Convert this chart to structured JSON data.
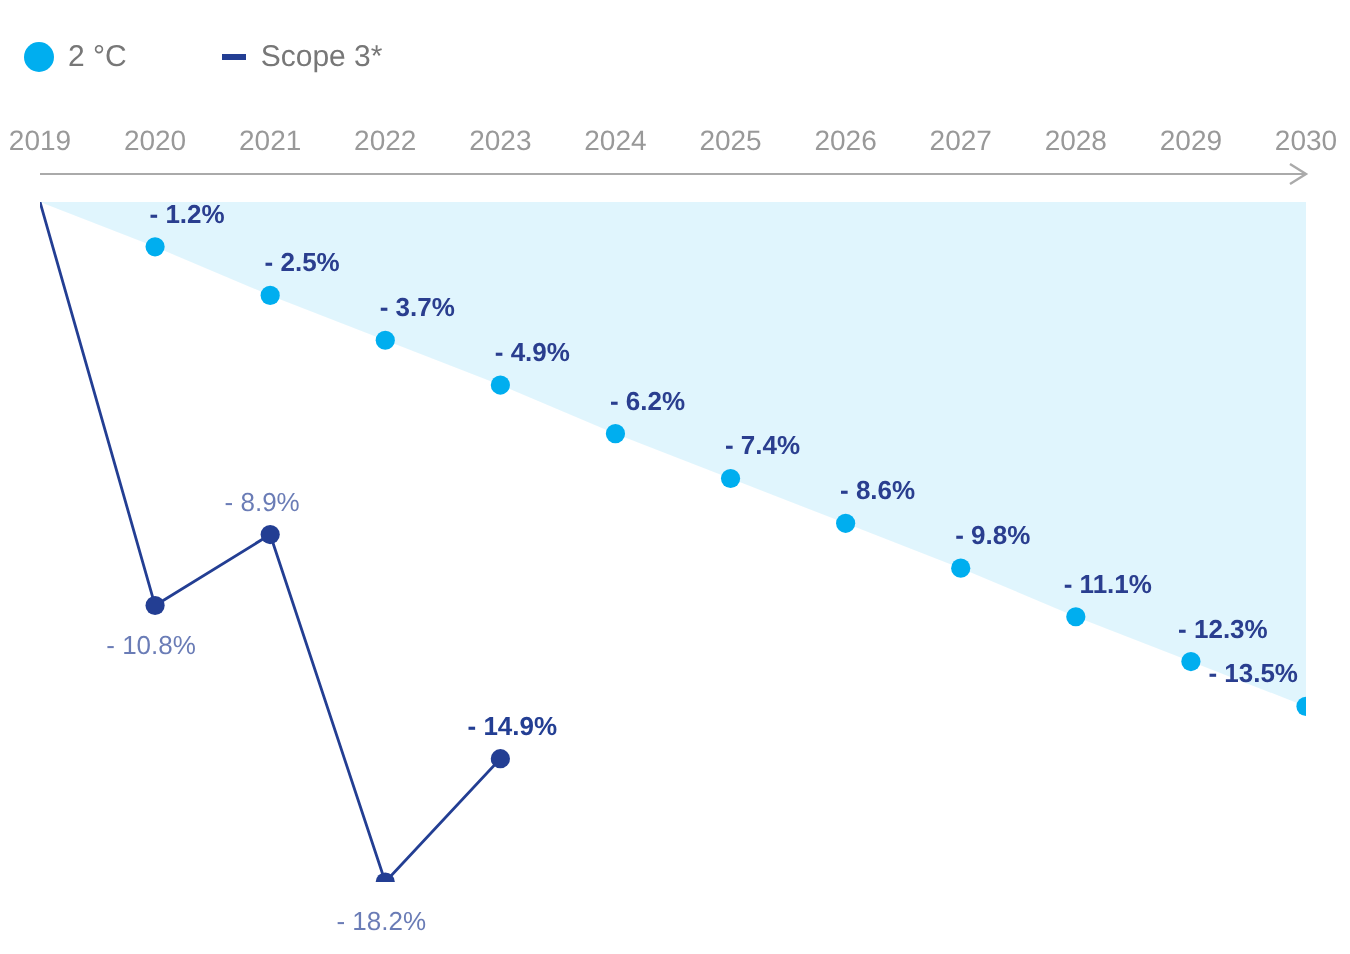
{
  "chart_data": {
    "type": "line",
    "legend": "top left",
    "marker": "circle",
    "line_style": "solid",
    "tick_labels": "x",
    "xlim": [
      2019,
      2030
    ],
    "xticks": [
      2019,
      2020,
      2021,
      2022,
      2023,
      2024,
      2025,
      2026,
      2027,
      2028,
      2029,
      2030
    ],
    "series": [
      {
        "name": "2 °C",
        "type": "area",
        "color": "#00aeef",
        "x": [
          2019,
          2020,
          2021,
          2022,
          2023,
          2024,
          2025,
          2026,
          2027,
          2028,
          2029,
          2030
        ],
        "values": [
          0,
          -1.2,
          -2.5,
          -3.7,
          -4.9,
          -6.2,
          -7.4,
          -8.6,
          -9.8,
          -11.1,
          -12.3,
          -13.5
        ],
        "value_labels": [
          null,
          "- 1.2%",
          "- 2.5%",
          "- 3.7%",
          "- 4.9%",
          "- 6.2%",
          "- 7.4%",
          "- 8.6%",
          "- 9.8%",
          "- 11.1%",
          "- 12.3%",
          "- 13.5%"
        ]
      },
      {
        "name": "Scope 3*",
        "color": "#233e93",
        "x": [
          2019,
          2020,
          2021,
          2022,
          2023
        ],
        "values": [
          0,
          -10.8,
          -8.9,
          -18.2,
          -14.9
        ],
        "value_labels": [
          null,
          "- 10.8%",
          "- 8.9%",
          "- 18.2%",
          "- 14.9%"
        ]
      }
    ]
  }
}
